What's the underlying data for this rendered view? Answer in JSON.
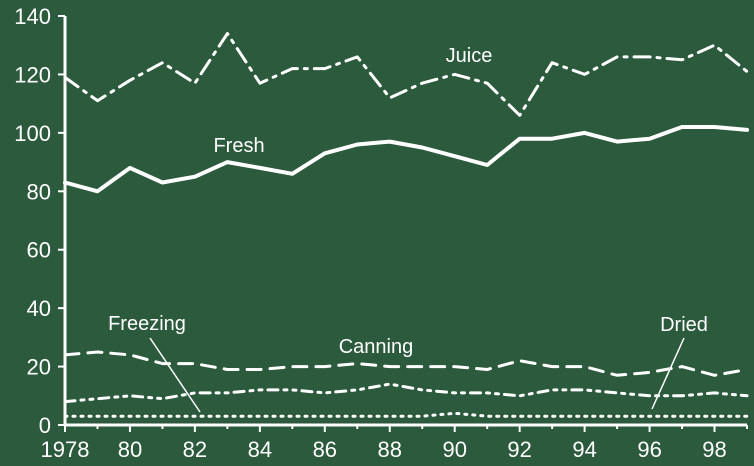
{
  "chart_data": {
    "type": "line",
    "xlabel": "",
    "ylabel": "",
    "xlim": [
      1978,
      1999
    ],
    "ylim": [
      0,
      140
    ],
    "grid": false,
    "legend": "inline labels",
    "x_ticks": [
      1978,
      1980,
      1982,
      1984,
      1986,
      1988,
      1990,
      1992,
      1994,
      1996,
      1998
    ],
    "x_tick_labels": [
      "1978",
      "80",
      "82",
      "84",
      "86",
      "88",
      "90",
      "92",
      "94",
      "96",
      "98"
    ],
    "y_ticks": [
      0,
      20,
      40,
      60,
      80,
      100,
      120,
      140
    ],
    "y_tick_labels": [
      "0",
      "20",
      "40",
      "60",
      "80",
      "100",
      "120",
      "140"
    ],
    "x": [
      1978,
      1979,
      1980,
      1981,
      1982,
      1983,
      1984,
      1985,
      1986,
      1987,
      1988,
      1989,
      1990,
      1991,
      1992,
      1993,
      1994,
      1995,
      1996,
      1997,
      1998,
      1999
    ],
    "series": [
      {
        "name": "Juice",
        "style": "dash-dot",
        "values": [
          119,
          111,
          118,
          124,
          117,
          134,
          117,
          122,
          122,
          126,
          112,
          117,
          120,
          117,
          106,
          124,
          120,
          126,
          126,
          125,
          130,
          121
        ]
      },
      {
        "name": "Fresh",
        "style": "solid",
        "values": [
          83,
          80,
          88,
          83,
          85,
          90,
          88,
          86,
          93,
          96,
          97,
          95,
          92,
          89,
          98,
          98,
          100,
          97,
          98,
          102,
          102,
          101
        ]
      },
      {
        "name": "Canning",
        "style": "dashed",
        "values": [
          24,
          25,
          24,
          21,
          21,
          19,
          19,
          20,
          20,
          21,
          20,
          20,
          20,
          19,
          22,
          20,
          20,
          17,
          18,
          20,
          17,
          19
        ]
      },
      {
        "name": "Freezing",
        "style": "dash-dot-dot",
        "values": [
          8,
          9,
          10,
          9,
          11,
          11,
          12,
          12,
          11,
          12,
          14,
          12,
          11,
          11,
          10,
          12,
          12,
          11,
          10,
          10,
          11,
          10
        ]
      },
      {
        "name": "Dried",
        "style": "dotted",
        "values": [
          3,
          3,
          3,
          3,
          3,
          3,
          3,
          3,
          3,
          3,
          3,
          3,
          4,
          3,
          3,
          3,
          3,
          3,
          3,
          3,
          3,
          3
        ]
      }
    ]
  },
  "colors": {
    "background": "#2b5a3c",
    "ink": "#ffffff"
  }
}
